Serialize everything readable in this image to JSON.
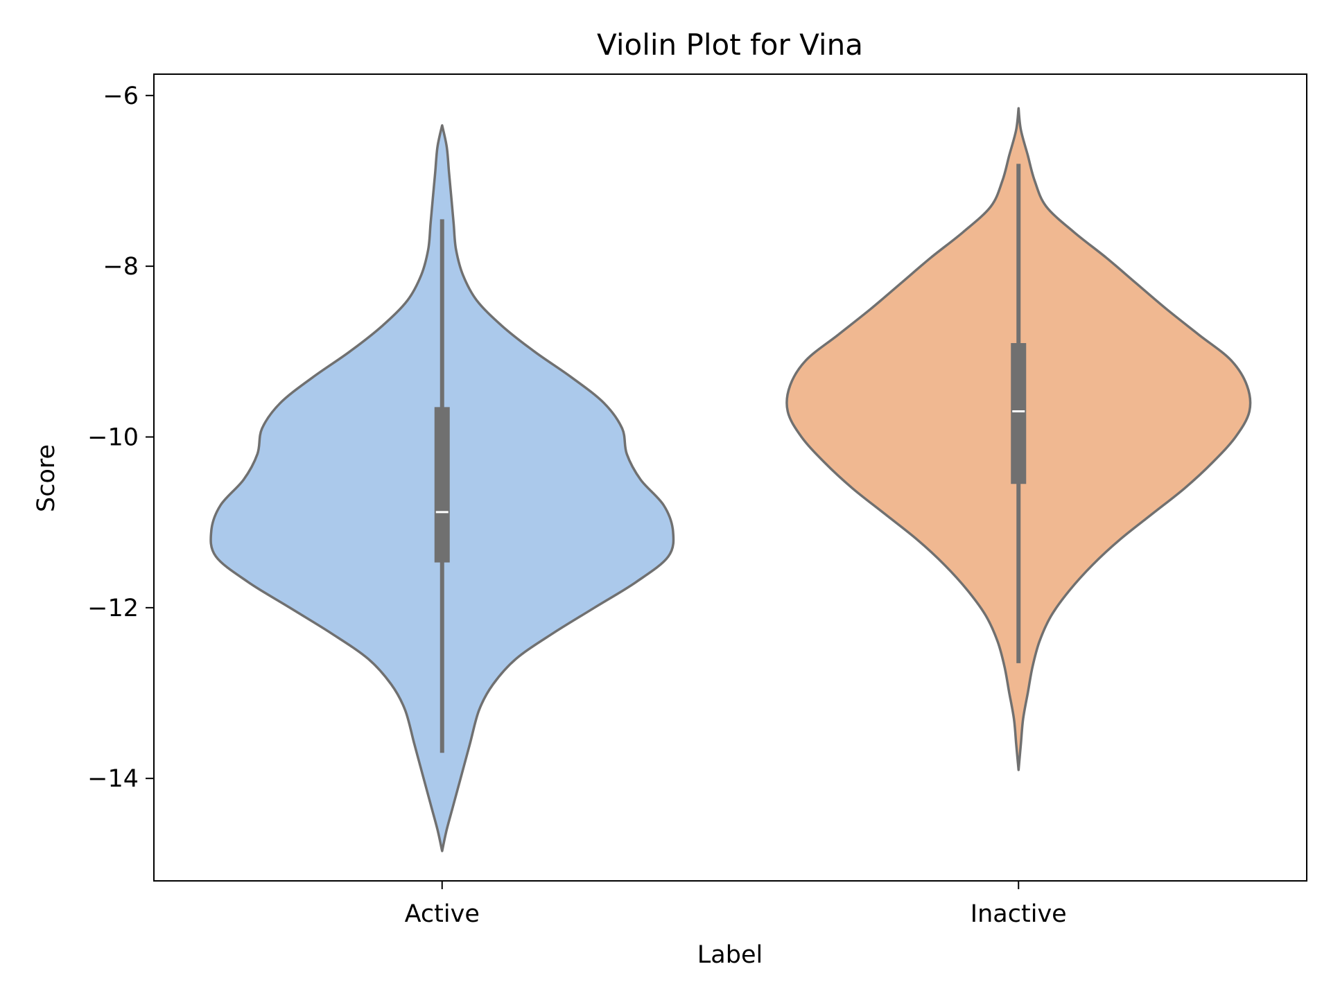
{
  "chart_data": {
    "type": "violin",
    "title": "Violin Plot for Vina",
    "xlabel": "Label",
    "ylabel": "Score",
    "ylim": [
      -15.2,
      -5.75
    ],
    "y_ticks": [
      -6,
      -8,
      -10,
      -12,
      -14
    ],
    "y_tick_labels": [
      "−6",
      "−8",
      "−10",
      "−12",
      "−14"
    ],
    "categories": [
      "Active",
      "Inactive"
    ],
    "grid": false,
    "legend": "none",
    "colors": {
      "violin_outline": "#707070",
      "box": "#707070",
      "median": "#ffffff",
      "axes": "#000000"
    },
    "series": [
      {
        "category": "Active",
        "color": "#abc9eb",
        "min": -14.85,
        "max": -6.35,
        "whisker_low": -13.7,
        "whisker_high": -7.45,
        "q1": -11.47,
        "q3": -9.65,
        "median": -10.88,
        "density_profile": [
          [
            -14.85,
            0.0
          ],
          [
            -14.6,
            0.02
          ],
          [
            -14.3,
            0.05
          ],
          [
            -14.0,
            0.08
          ],
          [
            -13.6,
            0.12
          ],
          [
            -13.2,
            0.16
          ],
          [
            -12.9,
            0.22
          ],
          [
            -12.6,
            0.32
          ],
          [
            -12.3,
            0.48
          ],
          [
            -12.0,
            0.66
          ],
          [
            -11.7,
            0.84
          ],
          [
            -11.4,
            0.98
          ],
          [
            -11.1,
            1.0
          ],
          [
            -10.8,
            0.96
          ],
          [
            -10.5,
            0.86
          ],
          [
            -10.2,
            0.8
          ],
          [
            -9.9,
            0.78
          ],
          [
            -9.6,
            0.7
          ],
          [
            -9.3,
            0.56
          ],
          [
            -9.0,
            0.4
          ],
          [
            -8.7,
            0.26
          ],
          [
            -8.4,
            0.15
          ],
          [
            -8.1,
            0.09
          ],
          [
            -7.8,
            0.06
          ],
          [
            -7.5,
            0.05
          ],
          [
            -7.2,
            0.04
          ],
          [
            -6.9,
            0.03
          ],
          [
            -6.6,
            0.02
          ],
          [
            -6.35,
            0.0
          ]
        ]
      },
      {
        "category": "Inactive",
        "color": "#f0b891",
        "min": -13.9,
        "max": -6.15,
        "whisker_low": -12.65,
        "whisker_high": -6.8,
        "q1": -10.55,
        "q3": -8.9,
        "median": -9.7,
        "density_profile": [
          [
            -13.9,
            0.0
          ],
          [
            -13.6,
            0.01
          ],
          [
            -13.3,
            0.02
          ],
          [
            -13.0,
            0.04
          ],
          [
            -12.7,
            0.06
          ],
          [
            -12.4,
            0.09
          ],
          [
            -12.1,
            0.14
          ],
          [
            -11.8,
            0.22
          ],
          [
            -11.5,
            0.32
          ],
          [
            -11.2,
            0.44
          ],
          [
            -10.9,
            0.58
          ],
          [
            -10.6,
            0.72
          ],
          [
            -10.3,
            0.84
          ],
          [
            -10.0,
            0.94
          ],
          [
            -9.7,
            1.0
          ],
          [
            -9.4,
            0.99
          ],
          [
            -9.1,
            0.92
          ],
          [
            -8.8,
            0.78
          ],
          [
            -8.5,
            0.64
          ],
          [
            -8.2,
            0.51
          ],
          [
            -7.9,
            0.38
          ],
          [
            -7.6,
            0.24
          ],
          [
            -7.3,
            0.12
          ],
          [
            -7.0,
            0.07
          ],
          [
            -6.7,
            0.04
          ],
          [
            -6.4,
            0.01
          ],
          [
            -6.15,
            0.0
          ]
        ]
      }
    ]
  }
}
